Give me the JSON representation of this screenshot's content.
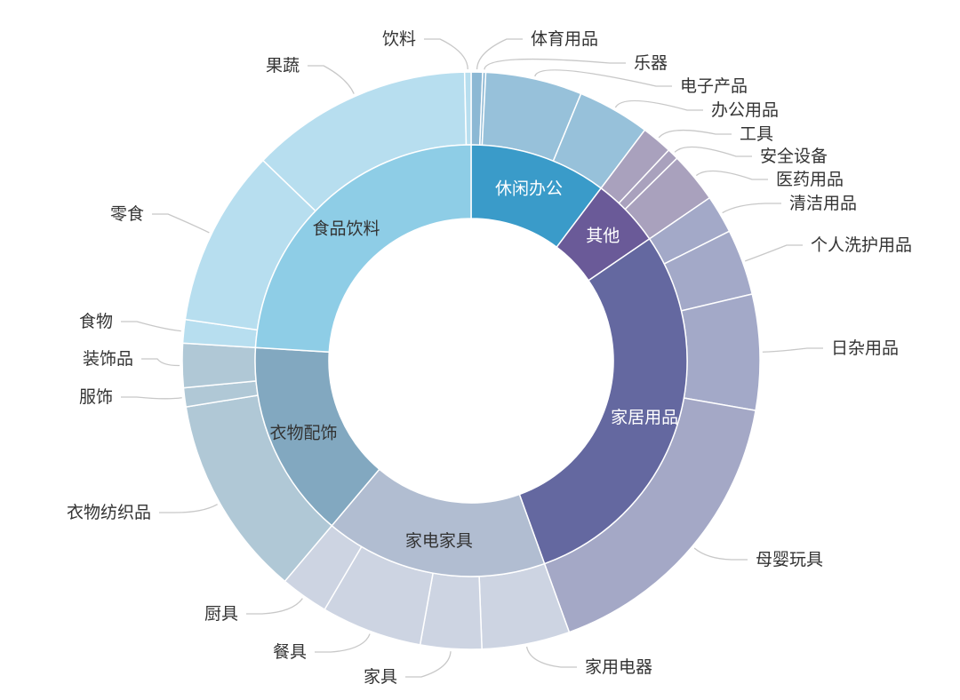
{
  "chart_data": {
    "type": "sunburst",
    "unit": "percent of total (estimated from arc angles)",
    "start": "top, clockwise",
    "inner": [
      {
        "name": "休闲办公",
        "color": "#3a9bc9",
        "label_color": "#ffffff",
        "children": [
          {
            "name": "体育用品",
            "value": 0.64,
            "color": "#8cb8d4"
          },
          {
            "name": "乐器",
            "value": 0.17,
            "color": "#8cb8d4"
          },
          {
            "name": "电子产品",
            "value": 5.4,
            "color": "#97c1da"
          },
          {
            "name": "办公用品",
            "value": 4.06,
            "color": "#97c1da"
          }
        ]
      },
      {
        "name": "其他",
        "color": "#6a5a98",
        "label_color": "#ffffff",
        "children": [
          {
            "name": "工具",
            "value": 1.72,
            "color": "#a9a1bd"
          },
          {
            "name": "安全设备",
            "value": 0.64,
            "color": "#a9a1bd"
          },
          {
            "name": "医药用品",
            "value": 2.83,
            "color": "#a9a1bd"
          }
        ]
      },
      {
        "name": "家居用品",
        "color": "#6468a0",
        "label_color": "#ffffff",
        "children": [
          {
            "name": "清洁用品",
            "value": 2.14,
            "color": "#a3a9c8"
          },
          {
            "name": "个人洗护用品",
            "value": 3.69,
            "color": "#a3a9c8"
          },
          {
            "name": "日杂用品",
            "value": 6.47,
            "color": "#a3a9c8"
          },
          {
            "name": "母婴玩具",
            "value": 16.72,
            "color": "#a4a8c6"
          }
        ]
      },
      {
        "name": "家电家具",
        "color": "#b1bdd1",
        "label_color": "#333333",
        "children": [
          {
            "name": "家用电器",
            "value": 4.92,
            "color": "#cdd4e2"
          },
          {
            "name": "家具",
            "value": 3.42,
            "color": "#cdd4e2"
          },
          {
            "name": "餐具",
            "value": 5.64,
            "color": "#cdd4e2"
          },
          {
            "name": "厨具",
            "value": 2.69,
            "color": "#cdd4e2"
          }
        ]
      },
      {
        "name": "衣物配饰",
        "color": "#82a8c0",
        "label_color": "#333333",
        "children": [
          {
            "name": "衣物纺织品",
            "value": 11.28,
            "color": "#b0c8d6"
          },
          {
            "name": "服饰",
            "value": 1.06,
            "color": "#b0c8d6"
          },
          {
            "name": "装饰品",
            "value": 2.47,
            "color": "#b0c8d6"
          }
        ]
      },
      {
        "name": "食品饮料",
        "color": "#8ecde6",
        "label_color": "#333333",
        "children": [
          {
            "name": "食物",
            "value": 1.31,
            "color": "#b7deef"
          },
          {
            "name": "零食",
            "value": 9.92,
            "color": "#b7deef"
          },
          {
            "name": "果蔬",
            "value": 12.44,
            "color": "#b7deef"
          },
          {
            "name": "饮料",
            "value": 0.36,
            "color": "#b7deef"
          }
        ]
      }
    ]
  }
}
